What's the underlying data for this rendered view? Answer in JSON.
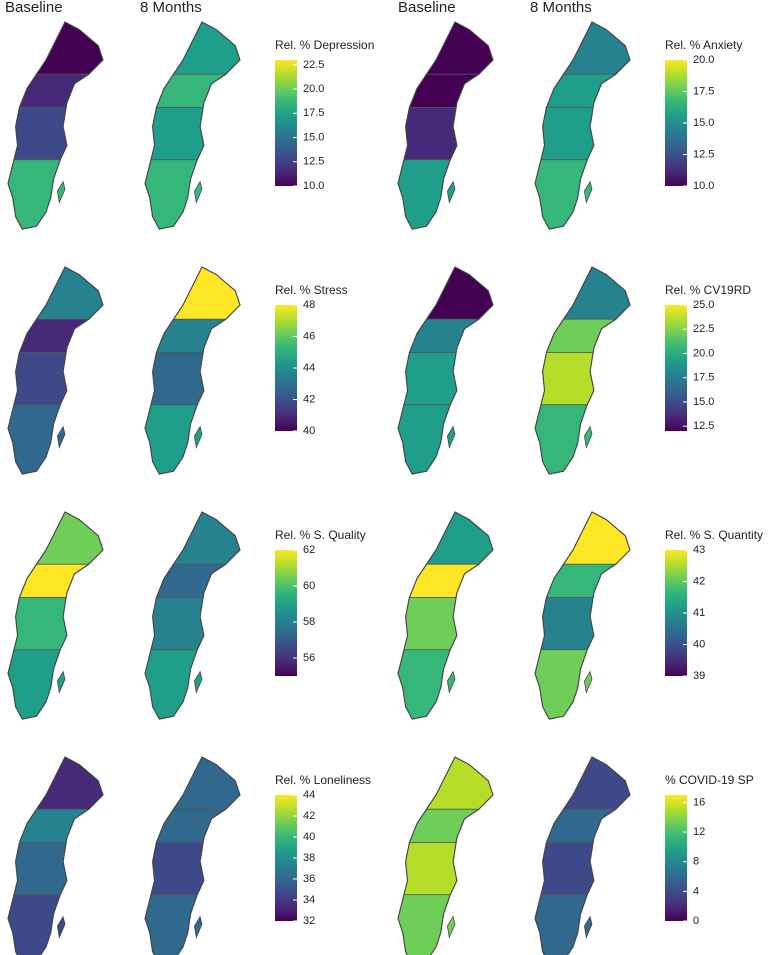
{
  "headers": [
    "Baseline",
    "8 Months",
    "Baseline",
    "8 Months"
  ],
  "colormap": [
    "#440154",
    "#482878",
    "#3e4989",
    "#31688e",
    "#26828e",
    "#1f9e89",
    "#35b779",
    "#6ece58",
    "#b5de2b",
    "#fde725"
  ],
  "panels": [
    {
      "title": "Rel. % Depression",
      "lim": [
        10,
        23
      ],
      "ticks": [
        {
          "value": 10,
          "label": "10.0"
        },
        {
          "value": 12.5,
          "label": "12.5"
        },
        {
          "value": 15,
          "label": "15.0"
        },
        {
          "value": 17.5,
          "label": "17.5"
        },
        {
          "value": 20,
          "label": "20.0"
        },
        {
          "value": 22.5,
          "label": "22.5"
        }
      ]
    },
    {
      "title": "Rel. % Anxiety",
      "lim": [
        10,
        20
      ],
      "ticks": [
        {
          "value": 10,
          "label": "10.0"
        },
        {
          "value": 12.5,
          "label": "12.5"
        },
        {
          "value": 15,
          "label": "15.0"
        },
        {
          "value": 17.5,
          "label": "17.5"
        },
        {
          "value": 20,
          "label": "20.0"
        }
      ]
    },
    {
      "title": "Rel. % Stress",
      "lim": [
        40,
        48
      ],
      "ticks": [
        40,
        42,
        44,
        46,
        48
      ]
    },
    {
      "title": "Rel. % CV19RD",
      "lim": [
        12,
        25
      ],
      "ticks": [
        12.5,
        {
          "value": 15,
          "label": "15.0"
        },
        17.5,
        {
          "value": 20,
          "label": "20.0"
        },
        22.5,
        {
          "value": 25,
          "label": "25.0"
        }
      ]
    },
    {
      "title": "Rel. % S. Quality",
      "lim": [
        55,
        62
      ],
      "ticks": [
        56,
        58,
        60,
        62
      ]
    },
    {
      "title": "Rel. % S. Quantity",
      "lim": [
        39,
        43
      ],
      "ticks": [
        39,
        40,
        41,
        42,
        43
      ]
    },
    {
      "title": "Rel. % Loneliness",
      "lim": [
        32,
        44
      ],
      "ticks": [
        32,
        34,
        36,
        38,
        40,
        42,
        44
      ]
    },
    {
      "title": "% COVID-19 SP",
      "lim": [
        0,
        17
      ],
      "ticks": [
        0,
        4,
        8,
        12,
        16
      ]
    }
  ]
}
